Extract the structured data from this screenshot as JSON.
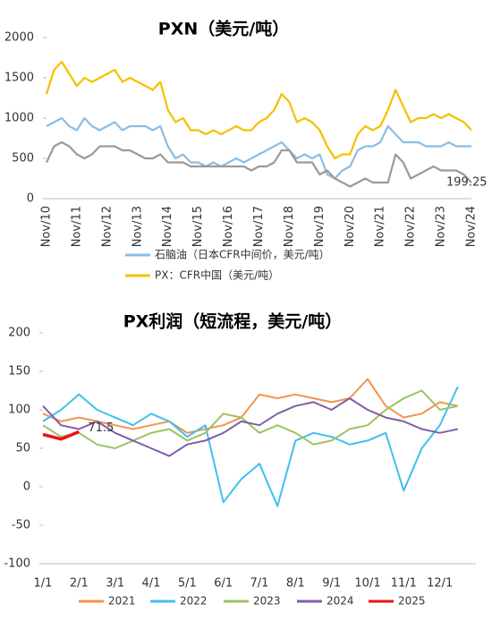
{
  "chart_data": [
    {
      "type": "line",
      "title": "PXN（美元/吨）",
      "categories": [
        "Nov/10",
        null,
        null,
        null,
        "Nov/11",
        null,
        null,
        null,
        "Nov/12",
        null,
        null,
        null,
        "Nov/13",
        null,
        null,
        null,
        "Nov/14",
        null,
        null,
        null,
        "Nov/15",
        null,
        null,
        null,
        "Nov/16",
        null,
        null,
        null,
        "Nov/17",
        null,
        null,
        null,
        "Nov/18",
        null,
        null,
        null,
        "Nov/19",
        null,
        null,
        null,
        "Nov/20",
        null,
        null,
        null,
        "Nov/21",
        null,
        null,
        null,
        "Nov/22",
        null,
        null,
        null,
        "Nov/23",
        null,
        null,
        null,
        "Nov/24"
      ],
      "series": [
        {
          "name": "石脑油（日本CFR中间价，美元/吨）",
          "color": "#8cbde3",
          "values": [
            900,
            950,
            1000,
            900,
            850,
            1000,
            900,
            850,
            900,
            950,
            850,
            900,
            900,
            900,
            850,
            900,
            650,
            500,
            550,
            450,
            450,
            400,
            450,
            400,
            450,
            500,
            450,
            500,
            550,
            600,
            650,
            700,
            600,
            500,
            550,
            500,
            550,
            300,
            250,
            350,
            400,
            600,
            650,
            650,
            700,
            900,
            800,
            700,
            700,
            700,
            650,
            650,
            650,
            700,
            650,
            650,
            650
          ]
        },
        {
          "name": "PX：CFR中国（美元/吨）",
          "color": "#f5c000",
          "values": [
            1300,
            1600,
            1700,
            1550,
            1400,
            1500,
            1450,
            1500,
            1550,
            1600,
            1450,
            1500,
            1450,
            1400,
            1350,
            1450,
            1100,
            950,
            1000,
            850,
            850,
            800,
            850,
            800,
            850,
            900,
            850,
            850,
            950,
            1000,
            1100,
            1300,
            1200,
            950,
            1000,
            950,
            850,
            650,
            500,
            550,
            550,
            800,
            900,
            850,
            900,
            1100,
            1350,
            1150,
            950,
            1000,
            1000,
            1050,
            1000,
            1050,
            1000,
            950,
            850
          ]
        },
        {
          "color": "#9a9a9a",
          "values": [
            450,
            650,
            700,
            650,
            550,
            500,
            550,
            650,
            650,
            650,
            600,
            600,
            550,
            500,
            500,
            550,
            450,
            450,
            450,
            400,
            400,
            400,
            400,
            400,
            400,
            400,
            400,
            350,
            400,
            400,
            450,
            600,
            600,
            450,
            450,
            450,
            300,
            350,
            250,
            200,
            150,
            200,
            250,
            200,
            200,
            200,
            550,
            450,
            250,
            300,
            350,
            400,
            350,
            350,
            350,
            300,
            199.25
          ]
        }
      ],
      "annotations": [
        "199.25"
      ],
      "ylim": [
        0,
        2000
      ],
      "yticks": [
        0,
        500,
        1000,
        1500,
        2000
      ]
    },
    {
      "type": "line",
      "title": "PX利润（短流程，美元/吨）",
      "categories": [
        "1/1",
        null,
        "2/1",
        null,
        "3/1",
        null,
        "4/1",
        null,
        "5/1",
        null,
        "6/1",
        null,
        "7/1",
        null,
        "8/1",
        null,
        "9/1",
        null,
        "10/1",
        null,
        "11/1",
        null,
        "12/1",
        null
      ],
      "series": [
        {
          "name": "2021",
          "color": "#f4944d",
          "values": [
            95,
            85,
            90,
            85,
            80,
            75,
            80,
            85,
            70,
            75,
            80,
            90,
            120,
            115,
            120,
            115,
            110,
            115,
            140,
            105,
            90,
            95,
            110,
            105
          ]
        },
        {
          "name": "2022",
          "color": "#40bff0",
          "values": [
            85,
            100,
            120,
            100,
            90,
            80,
            95,
            85,
            65,
            80,
            -20,
            10,
            30,
            -25,
            60,
            70,
            65,
            55,
            60,
            70,
            -5,
            50,
            80,
            130
          ]
        },
        {
          "name": "2023",
          "color": "#9cc360",
          "values": [
            80,
            65,
            70,
            55,
            50,
            60,
            70,
            75,
            60,
            70,
            95,
            90,
            70,
            80,
            70,
            55,
            60,
            75,
            80,
            100,
            115,
            125,
            100,
            105
          ]
        },
        {
          "name": "2024",
          "color": "#7f5fa6",
          "values": [
            105,
            80,
            75,
            85,
            70,
            60,
            50,
            40,
            55,
            60,
            70,
            85,
            80,
            95,
            105,
            110,
            100,
            115,
            100,
            90,
            85,
            75,
            70,
            75
          ]
        },
        {
          "name": "2025",
          "color": "#ee1111",
          "values": [
            68,
            62,
            71.5,
            null,
            null,
            null,
            null,
            null,
            null,
            null,
            null,
            null,
            null,
            null,
            null,
            null,
            null,
            null,
            null,
            null,
            null,
            null,
            null,
            null
          ]
        }
      ],
      "annotations": [
        "71.5"
      ],
      "ylim": [
        -100,
        200
      ],
      "yticks": [
        -100,
        -50,
        0,
        50,
        100,
        150,
        200
      ]
    }
  ]
}
